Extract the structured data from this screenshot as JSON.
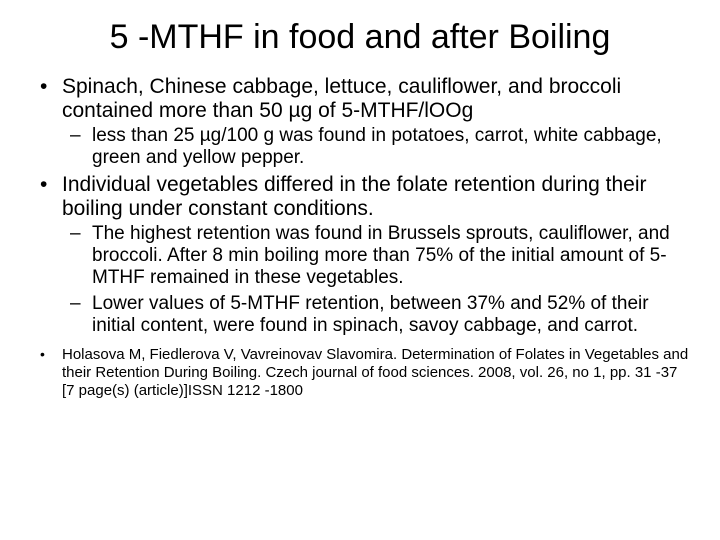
{
  "slide": {
    "title": "5 -MTHF in food and after Boiling",
    "bullets": [
      {
        "text": "Spinach, Chinese cabbage, lettuce, cauliflower, and broccoli contained more than 50 µg of 5-MTHF/lOOg",
        "sub": [
          "less than 25 µg/100 g was found in potatoes, carrot, white cabbage, green and yellow pepper."
        ]
      },
      {
        "text": "Individual vegetables differed in the folate retention during their boiling under constant conditions.",
        "sub": [
          "The highest retention was found in Brussels sprouts, cauliflower, and broccoli. After 8 min boiling more than 75% of the initial amount of 5-MTHF remained in these vegetables.",
          "Lower values of 5-MTHF retention, between 37% and 52% of their initial content, were found in spinach, savoy cabbage, and carrot."
        ]
      }
    ],
    "citation": "Holasova M, Fiedlerova V, Vavreinovav  Slavomira. Determination of Folates in Vegetables and their Retention During Boiling. Czech journal of food sciences. 2008, vol. 26, no 1, pp. 31 -37 [7 page(s) (article)]ISSN  1212 -1800"
  }
}
